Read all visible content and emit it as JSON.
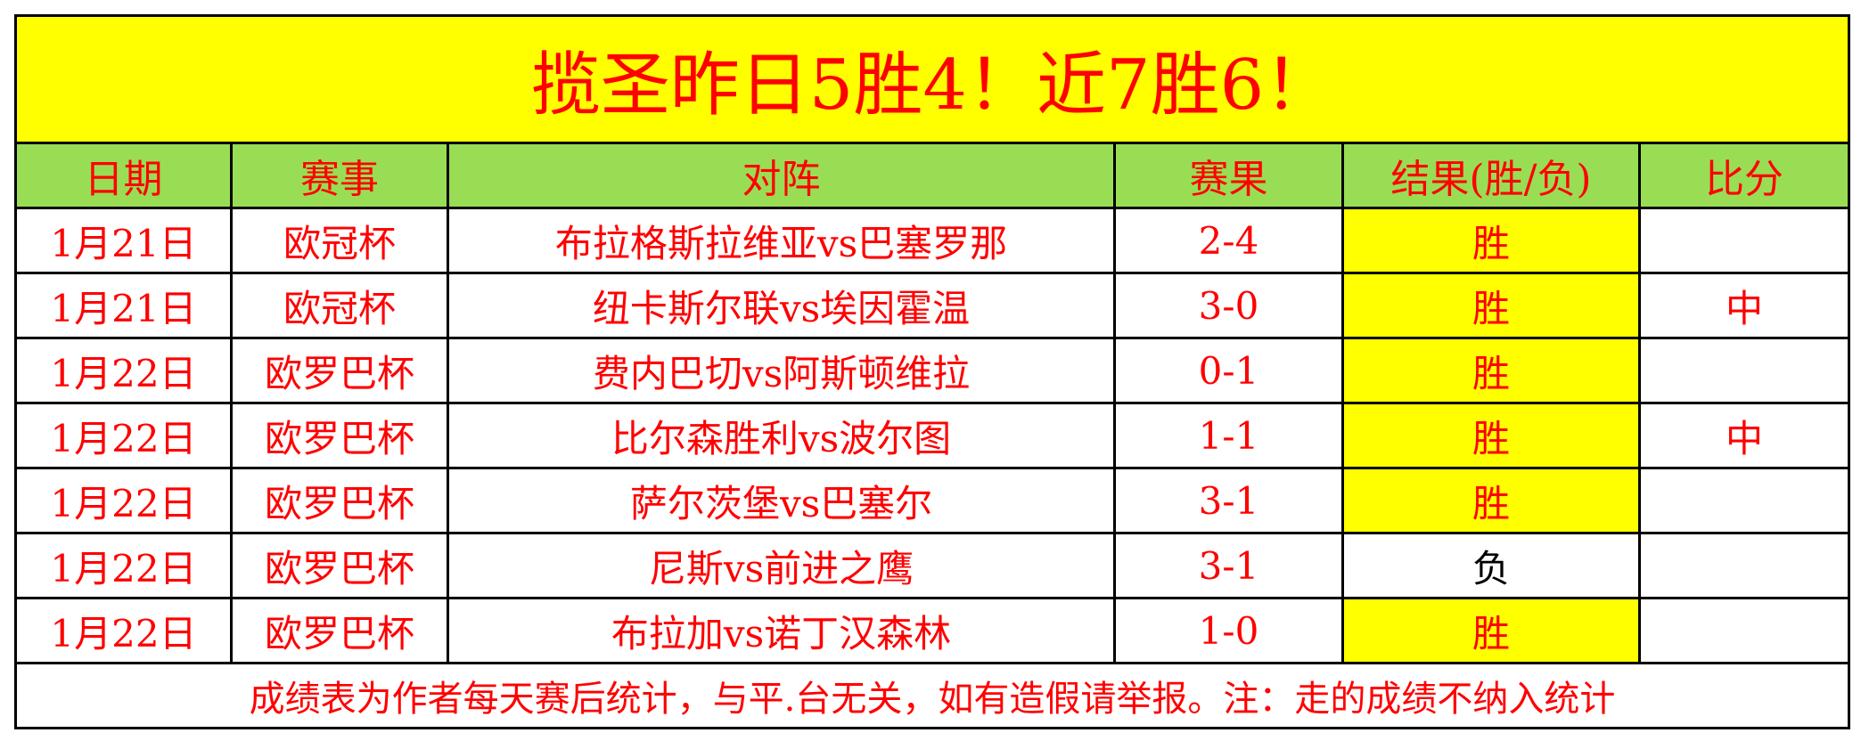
{
  "title": "揽圣昨日5胜4！近7胜6！",
  "headers": [
    "日期",
    "赛事",
    "对阵",
    "赛果",
    "结果(胜/负)",
    "比分"
  ],
  "rows": [
    {
      "date": "1月21日",
      "league": "欧冠杯",
      "match": "布拉格斯拉维亚vs巴塞罗那",
      "score": "2-4",
      "result": "胜",
      "hit": ""
    },
    {
      "date": "1月21日",
      "league": "欧冠杯",
      "match": "纽卡斯尔联vs埃因霍温",
      "score": "3-0",
      "result": "胜",
      "hit": "中"
    },
    {
      "date": "1月22日",
      "league": "欧罗巴杯",
      "match": "费内巴切vs阿斯顿维拉",
      "score": "0-1",
      "result": "胜",
      "hit": ""
    },
    {
      "date": "1月22日",
      "league": "欧罗巴杯",
      "match": "比尔森胜利vs波尔图",
      "score": "1-1",
      "result": "胜",
      "hit": "中"
    },
    {
      "date": "1月22日",
      "league": "欧罗巴杯",
      "match": "萨尔茨堡vs巴塞尔",
      "score": "3-1",
      "result": "胜",
      "hit": ""
    },
    {
      "date": "1月22日",
      "league": "欧罗巴杯",
      "match": "尼斯vs前进之鹰",
      "score": "3-1",
      "result": "负",
      "hit": ""
    },
    {
      "date": "1月22日",
      "league": "欧罗巴杯",
      "match": "布拉加vs诺丁汉森林",
      "score": "1-0",
      "result": "胜",
      "hit": ""
    }
  ],
  "footer": "成绩表为作者每天赛后统计，与平.台无关，如有造假请举报。注：走的成绩不纳入统计",
  "colors": {
    "title_bg": "#ffff00",
    "header_bg": "#99dd55",
    "text": "#ff0000",
    "win_bg": "#ffff00"
  }
}
